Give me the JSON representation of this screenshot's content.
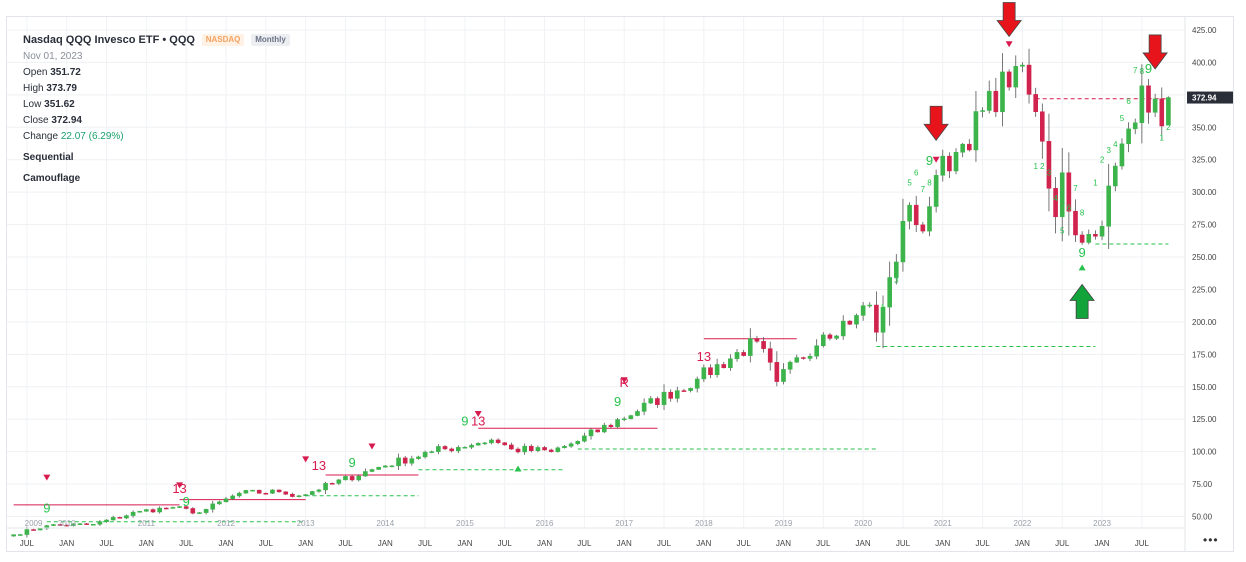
{
  "header": {
    "title": "Nasdaq QQQ Invesco ETF • QQQ",
    "exchange_badge": "NASDAQ",
    "period_badge": "Monthly",
    "date": "Nov 01, 2023",
    "open_label": "Open",
    "open_value": "351.72",
    "high_label": "High",
    "high_value": "373.79",
    "low_label": "Low",
    "low_value": "351.62",
    "close_label": "Close",
    "close_value": "372.94",
    "change_label": "Change",
    "change_value": "22.07 (6.29%)",
    "indicator_1": "Sequential",
    "indicator_2": "Camouflage",
    "more_label": "•••"
  },
  "colors": {
    "up": "#3cb44b",
    "down": "#d0234d",
    "label_up": "#27c24c",
    "label_down": "#d81b4f",
    "arrow_red": "#e8141c",
    "arrow_green": "#12a33a",
    "price_tag": "#2a2e39"
  },
  "chart_data": {
    "type": "candlestick",
    "symbol": "QQQ",
    "y_ticks": [
      "425.00",
      "400.00",
      "375.00",
      "350.00",
      "325.00",
      "300.00",
      "275.00",
      "250.00",
      "225.00",
      "200.00",
      "175.00",
      "150.00",
      "125.00",
      "100.00",
      "75.00",
      "50.00"
    ],
    "y_values": [
      425,
      400,
      375,
      350,
      325,
      300,
      275,
      250,
      225,
      200,
      175,
      150,
      125,
      100,
      75,
      50
    ],
    "ylim": [
      40,
      430
    ],
    "x_start": "2009-05",
    "x_end": "2024-01",
    "x_ticks": [
      "JUL",
      "JAN",
      "JUL",
      "JAN",
      "JUL",
      "JAN",
      "JUL",
      "JAN",
      "JUL",
      "JAN",
      "JUL",
      "JAN",
      "JUL",
      "JAN",
      "JUL",
      "JAN",
      "JUL",
      "JAN",
      "JUL",
      "JAN",
      "JUL",
      "JAN",
      "JUL",
      "JAN",
      "JUL",
      "JAN",
      "JUL",
      "JAN",
      "JUL"
    ],
    "year_labels": [
      "2009",
      "2010",
      "2011",
      "2012",
      "2013",
      "2014",
      "2015",
      "2016",
      "2017",
      "2018",
      "2019",
      "2020",
      "2021",
      "2022",
      "2023"
    ],
    "last_price": "372.94",
    "anchors": [
      {
        "t": "2009-05",
        "c": 36
      },
      {
        "t": "2009-10",
        "c": 43
      },
      {
        "t": "2010-05",
        "c": 44
      },
      {
        "t": "2010-12",
        "c": 54
      },
      {
        "t": "2011-05",
        "c": 57
      },
      {
        "t": "2011-09",
        "c": 53
      },
      {
        "t": "2012-03",
        "c": 68
      },
      {
        "t": "2012-09",
        "c": 69
      },
      {
        "t": "2012-12",
        "c": 66
      },
      {
        "t": "2013-12",
        "c": 88
      },
      {
        "t": "2014-08",
        "c": 100
      },
      {
        "t": "2015-05",
        "c": 109
      },
      {
        "t": "2015-08",
        "c": 102
      },
      {
        "t": "2016-02",
        "c": 100
      },
      {
        "t": "2016-06",
        "c": 108
      },
      {
        "t": "2017-12",
        "c": 156
      },
      {
        "t": "2018-09",
        "c": 185
      },
      {
        "t": "2018-12",
        "c": 154
      },
      {
        "t": "2019-07",
        "c": 190
      },
      {
        "t": "2019-12",
        "c": 205
      },
      {
        "t": "2020-02",
        "c": 213
      },
      {
        "t": "2020-03",
        "c": 192
      },
      {
        "t": "2020-08",
        "c": 290
      },
      {
        "t": "2020-10",
        "c": 270
      },
      {
        "t": "2020-12",
        "c": 313
      },
      {
        "t": "2021-04",
        "c": 337
      },
      {
        "t": "2021-12",
        "c": 397
      },
      {
        "t": "2022-03",
        "c": 362
      },
      {
        "t": "2022-06",
        "c": 281
      },
      {
        "t": "2022-07",
        "c": 315
      },
      {
        "t": "2022-09",
        "c": 267
      },
      {
        "t": "2022-12",
        "c": 266
      },
      {
        "t": "2023-07",
        "c": 382
      },
      {
        "t": "2023-10",
        "c": 351
      },
      {
        "t": "2023-11",
        "o": 351.72,
        "h": 373.79,
        "l": 351.62,
        "c": 372.94
      }
    ],
    "sequential_labels": [
      {
        "t": "2009-10",
        "p": 53,
        "text": "9",
        "kind": "up",
        "big": true
      },
      {
        "t": "2011-06",
        "p": 68,
        "text": "13",
        "kind": "down",
        "big": true
      },
      {
        "t": "2011-07",
        "p": 58,
        "text": "9",
        "kind": "up",
        "big": true
      },
      {
        "t": "2013-03",
        "p": 86,
        "text": "13",
        "kind": "down",
        "big": true
      },
      {
        "t": "2013-08",
        "p": 88,
        "text": "9",
        "kind": "up",
        "big": true
      },
      {
        "t": "2015-03",
        "p": 120,
        "text": "13",
        "kind": "down",
        "big": true
      },
      {
        "t": "2015-01",
        "p": 120,
        "text": "9",
        "kind": "up",
        "big": true
      },
      {
        "t": "2016-12",
        "p": 135,
        "text": "9",
        "kind": "up",
        "big": true
      },
      {
        "t": "2017-01",
        "p": 150,
        "text": "R",
        "kind": "down",
        "big": true
      },
      {
        "t": "2017-01",
        "p": 152,
        "text": "1",
        "kind": "down",
        "big": false
      },
      {
        "t": "2018-01",
        "p": 170,
        "text": "13",
        "kind": "down",
        "big": true
      },
      {
        "t": "2020-11",
        "p": 321,
        "text": "9",
        "kind": "up",
        "big": true
      },
      {
        "t": "2022-10",
        "p": 250,
        "text": "9",
        "kind": "up",
        "big": true
      },
      {
        "t": "2023-08",
        "p": 392,
        "text": "9",
        "kind": "up",
        "big": true
      },
      {
        "t": "2023-07",
        "p": 391,
        "text": "8",
        "kind": "up",
        "big": false
      },
      {
        "t": "2023-06",
        "p": 392,
        "text": "7",
        "kind": "up",
        "big": false
      },
      {
        "t": "2023-05",
        "p": 368,
        "text": "6",
        "kind": "up",
        "big": false
      },
      {
        "t": "2023-04",
        "p": 355,
        "text": "5",
        "kind": "up",
        "big": false
      },
      {
        "t": "2023-03",
        "p": 335,
        "text": "4",
        "kind": "up",
        "big": false
      },
      {
        "t": "2023-02",
        "p": 330,
        "text": "3",
        "kind": "up",
        "big": false
      },
      {
        "t": "2023-01",
        "p": 323,
        "text": "2",
        "kind": "up",
        "big": false
      },
      {
        "t": "2022-12",
        "p": 305,
        "text": "1",
        "kind": "up",
        "big": false
      },
      {
        "t": "2023-10",
        "p": 340,
        "text": "1",
        "kind": "up",
        "big": false
      },
      {
        "t": "2023-11",
        "p": 348,
        "text": "2",
        "kind": "up",
        "big": false
      },
      {
        "t": "2022-03",
        "p": 318,
        "text": "1",
        "kind": "up",
        "big": false
      },
      {
        "t": "2022-04",
        "p": 318,
        "text": "2",
        "kind": "up",
        "big": false
      },
      {
        "t": "2022-05",
        "p": 313,
        "text": "3",
        "kind": "up",
        "big": false
      },
      {
        "t": "2022-06",
        "p": 293,
        "text": "4",
        "kind": "up",
        "big": false
      },
      {
        "t": "2022-07",
        "p": 268,
        "text": "5",
        "kind": "up",
        "big": false
      },
      {
        "t": "2022-08",
        "p": 286,
        "text": "6",
        "kind": "up",
        "big": false
      },
      {
        "t": "2022-09",
        "p": 301,
        "text": "7",
        "kind": "up",
        "big": false
      },
      {
        "t": "2022-10",
        "p": 282,
        "text": "8",
        "kind": "up",
        "big": false
      },
      {
        "t": "2020-04",
        "p": 209,
        "text": "1",
        "kind": "up",
        "big": false
      },
      {
        "t": "2020-05",
        "p": 216,
        "text": "2",
        "kind": "up",
        "big": false
      },
      {
        "t": "2020-06",
        "p": 230,
        "text": "3",
        "kind": "up",
        "big": false
      },
      {
        "t": "2020-07",
        "p": 270,
        "text": "4",
        "kind": "up",
        "big": false
      },
      {
        "t": "2020-08",
        "p": 305,
        "text": "5",
        "kind": "up",
        "big": false
      },
      {
        "t": "2020-09",
        "p": 313,
        "text": "6",
        "kind": "up",
        "big": false
      },
      {
        "t": "2020-10",
        "p": 300,
        "text": "7",
        "kind": "up",
        "big": false
      },
      {
        "t": "2020-11",
        "p": 305,
        "text": "8",
        "kind": "up",
        "big": false
      }
    ],
    "down_triangles": [
      {
        "t": "2009-10",
        "p": 80
      },
      {
        "t": "2011-06",
        "p": 74
      },
      {
        "t": "2013-01",
        "p": 94
      },
      {
        "t": "2013-11",
        "p": 104
      },
      {
        "t": "2015-03",
        "p": 129
      },
      {
        "t": "2017-01",
        "p": 155
      },
      {
        "t": "2020-12",
        "p": 325
      },
      {
        "t": "2021-11",
        "p": 414
      }
    ],
    "up_triangles": [
      {
        "t": "2015-09",
        "p": 87
      },
      {
        "t": "2022-10",
        "p": 242
      }
    ],
    "resistance_lines": [
      {
        "from": "2009-05",
        "to": "2011-06",
        "p": 59
      },
      {
        "from": "2011-06",
        "to": "2013-01",
        "p": 63
      },
      {
        "from": "2013-04",
        "to": "2014-06",
        "p": 82
      },
      {
        "from": "2015-03",
        "to": "2017-06",
        "p": 118
      },
      {
        "from": "2018-01",
        "to": "2019-03",
        "p": 187
      },
      {
        "from": "2022-03",
        "to": "2023-11",
        "p": 372
      }
    ],
    "support_lines": [
      {
        "from": "2009-10",
        "to": "2013-01",
        "p": 46
      },
      {
        "from": "2013-01",
        "to": "2014-06",
        "p": 66
      },
      {
        "from": "2014-06",
        "to": "2016-04",
        "p": 86
      },
      {
        "from": "2016-06",
        "to": "2020-03",
        "p": 102
      },
      {
        "from": "2020-03",
        "to": "2022-12",
        "p": 181
      },
      {
        "from": "2022-12",
        "to": "2023-11",
        "p": 260
      }
    ],
    "big_arrows": [
      {
        "t": "2020-12",
        "p": 340,
        "dir": "down",
        "color": "red"
      },
      {
        "t": "2021-11",
        "p": 420,
        "dir": "down",
        "color": "red"
      },
      {
        "t": "2023-09",
        "p": 395,
        "dir": "down",
        "color": "red"
      },
      {
        "t": "2022-10",
        "p": 225,
        "dir": "up",
        "color": "green"
      }
    ]
  }
}
